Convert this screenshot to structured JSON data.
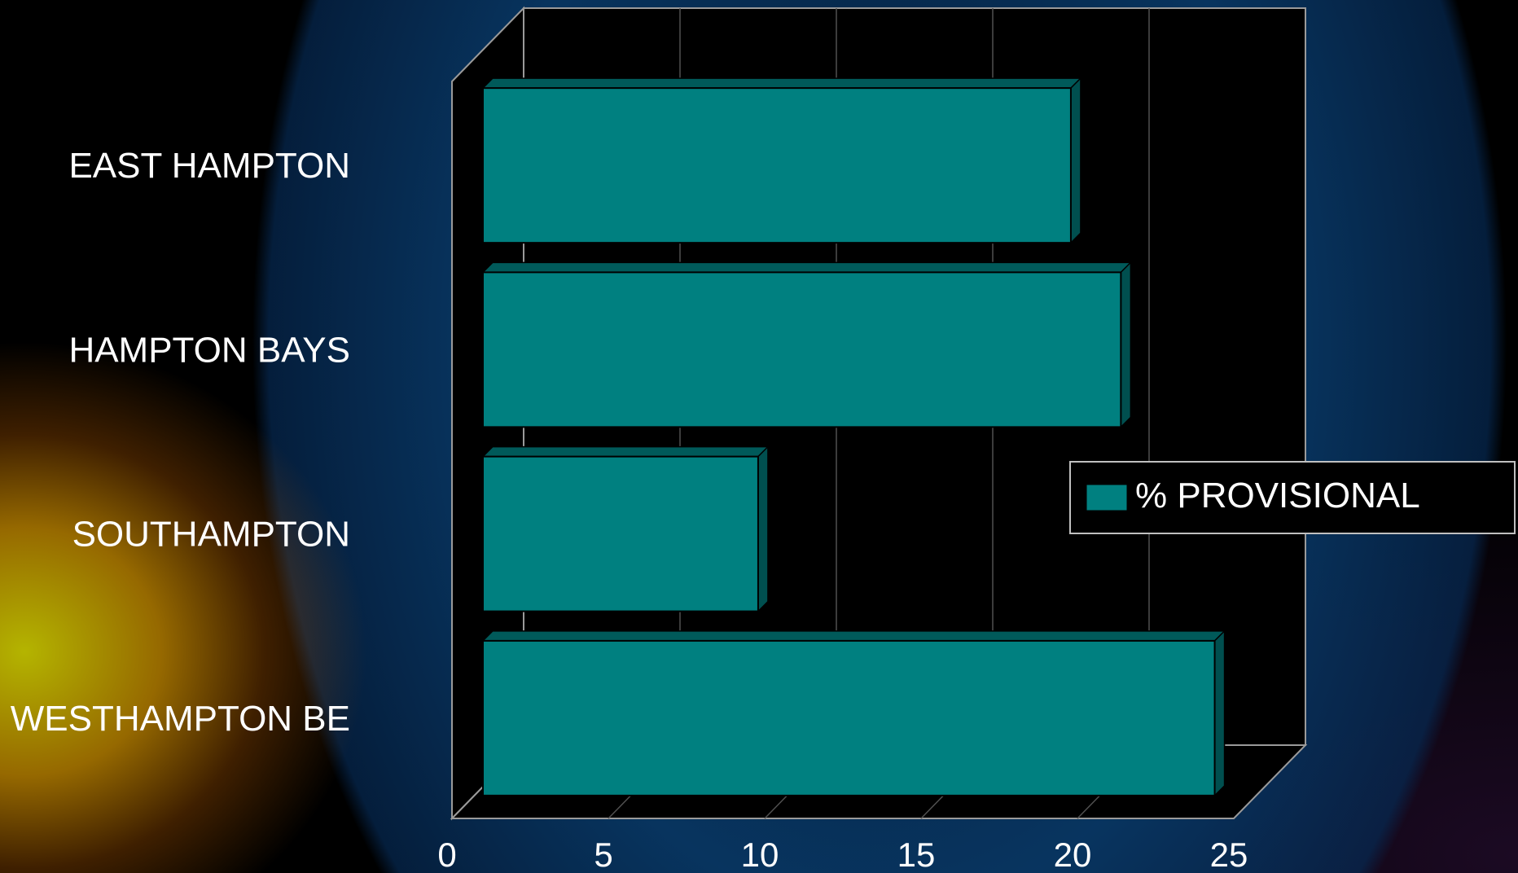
{
  "chart_data": {
    "type": "bar",
    "orientation": "horizontal",
    "style": "3d",
    "categories": [
      "EAST HAMPTON",
      "HAMPTON BAYS",
      "SOUTHAMPTON",
      "WESTHAMPTON BE"
    ],
    "series": [
      {
        "name": "% PROVISIONAL",
        "values": [
          18.8,
          20.4,
          8.8,
          23.4
        ],
        "color": "#008080"
      }
    ],
    "x_ticks": [
      "0",
      "5",
      "10",
      "15",
      "20",
      "25"
    ],
    "xlim": [
      0,
      25
    ],
    "grid": true,
    "legend_position": "right",
    "background": "#000000",
    "gridline_color": "#505050",
    "frame_color": "#9a9a9a"
  }
}
